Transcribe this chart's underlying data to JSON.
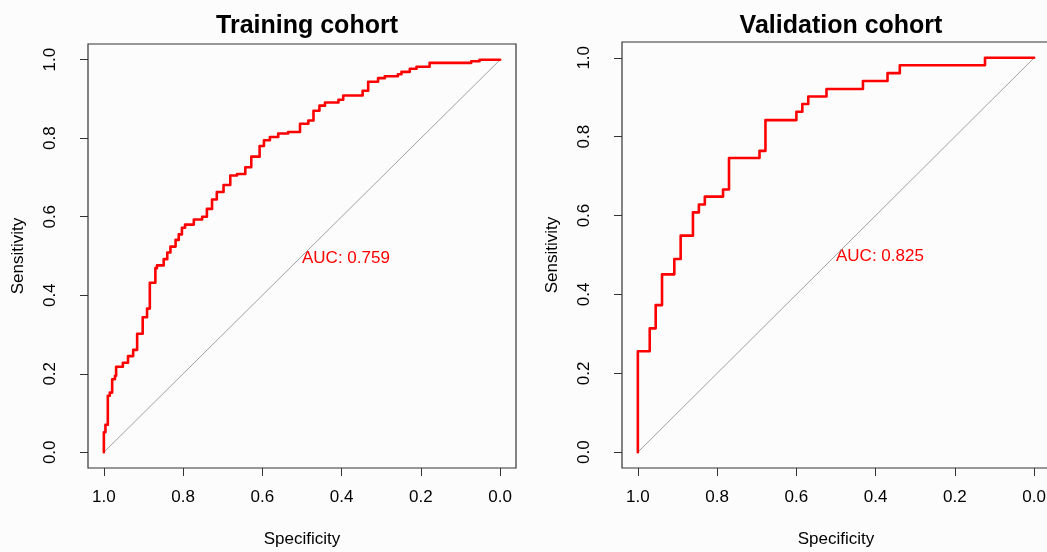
{
  "chart_data": [
    {
      "type": "step",
      "title": "Training cohort",
      "xlabel": "Specificity",
      "ylabel": "Sensitivity",
      "annotations": [
        "AUC: 0.759"
      ],
      "marker": "none",
      "xlim": [
        1.04,
        -0.04
      ],
      "ylim": [
        -0.04,
        1.04
      ],
      "xticks": [
        {
          "value": 1,
          "label": "1.0"
        },
        {
          "value": 0.8,
          "label": "0.8"
        },
        {
          "value": 0.6,
          "label": "0.6"
        },
        {
          "value": 0.4,
          "label": "0.4"
        },
        {
          "value": 0.2,
          "label": "0.2"
        },
        {
          "value": 0,
          "label": "0.0"
        }
      ],
      "yticks": [
        {
          "value": 0,
          "label": "0.0"
        },
        {
          "value": 0.2,
          "label": "0.2"
        },
        {
          "value": 0.4,
          "label": "0.4"
        },
        {
          "value": 0.6,
          "label": "0.6"
        },
        {
          "value": 0.8,
          "label": "0.8"
        },
        {
          "value": 1,
          "label": "1.0"
        }
      ],
      "series": [
        {
          "type": "line",
          "color": "#a0a0a0",
          "x": [
            1,
            0
          ],
          "values": [
            0,
            1
          ]
        },
        {
          "type": "step",
          "color": "#ff0000",
          "x": [
            1,
            1,
            0.996,
            0.99,
            0.985,
            0.979,
            0.972,
            0.969,
            0.952,
            0.939,
            0.926,
            0.916,
            0.902,
            0.891,
            0.884,
            0.87,
            0.866,
            0.849,
            0.84,
            0.832,
            0.819,
            0.811,
            0.803,
            0.795,
            0.773,
            0.752,
            0.74,
            0.727,
            0.715,
            0.698,
            0.681,
            0.664,
            0.643,
            0.628,
            0.607,
            0.596,
            0.581,
            0.56,
            0.535,
            0.505,
            0.484,
            0.471,
            0.456,
            0.442,
            0.408,
            0.396,
            0.347,
            0.333,
            0.308,
            0.291,
            0.258,
            0.249,
            0.228,
            0.211,
            0.178,
            0.073,
            0.052,
            0
          ],
          "values": [
            0,
            0.051,
            0.07,
            0.144,
            0.152,
            0.186,
            0.195,
            0.218,
            0.228,
            0.245,
            0.261,
            0.302,
            0.344,
            0.366,
            0.432,
            0.469,
            0.476,
            0.492,
            0.509,
            0.524,
            0.541,
            0.555,
            0.572,
            0.58,
            0.593,
            0.6,
            0.62,
            0.644,
            0.663,
            0.681,
            0.705,
            0.709,
            0.726,
            0.753,
            0.78,
            0.795,
            0.803,
            0.812,
            0.816,
            0.837,
            0.845,
            0.87,
            0.883,
            0.891,
            0.898,
            0.909,
            0.921,
            0.944,
            0.953,
            0.958,
            0.963,
            0.969,
            0.977,
            0.982,
            0.992,
            0.996,
            1,
            1
          ]
        }
      ]
    },
    {
      "type": "step",
      "title": "Validation cohort",
      "xlabel": "Specificity",
      "ylabel": "Sensitivity",
      "annotations": [
        "AUC: 0.825"
      ],
      "marker": "none",
      "xlim": [
        1.04,
        -0.04
      ],
      "ylim": [
        -0.04,
        1.04
      ],
      "xticks": [
        {
          "value": 1,
          "label": "1.0"
        },
        {
          "value": 0.8,
          "label": "0.8"
        },
        {
          "value": 0.6,
          "label": "0.6"
        },
        {
          "value": 0.4,
          "label": "0.4"
        },
        {
          "value": 0.2,
          "label": "0.2"
        },
        {
          "value": 0,
          "label": "0.0"
        }
      ],
      "yticks": [
        {
          "value": 0,
          "label": "0.0"
        },
        {
          "value": 0.2,
          "label": "0.2"
        },
        {
          "value": 0.4,
          "label": "0.4"
        },
        {
          "value": 0.6,
          "label": "0.6"
        },
        {
          "value": 0.8,
          "label": "0.8"
        },
        {
          "value": 1,
          "label": "1.0"
        }
      ],
      "series": [
        {
          "type": "line",
          "color": "#a0a0a0",
          "x": [
            1,
            0
          ],
          "values": [
            0,
            1
          ]
        },
        {
          "type": "step",
          "color": "#ff0000",
          "x": [
            1,
            1,
            0.97,
            0.955,
            0.939,
            0.908,
            0.892,
            0.861,
            0.846,
            0.831,
            0.785,
            0.77,
            0.693,
            0.678,
            0.6,
            0.585,
            0.57,
            0.524,
            0.432,
            0.37,
            0.339,
            0.124,
            0
          ],
          "values": [
            0,
            0.256,
            0.314,
            0.373,
            0.451,
            0.49,
            0.549,
            0.608,
            0.628,
            0.648,
            0.666,
            0.746,
            0.764,
            0.842,
            0.863,
            0.883,
            0.902,
            0.921,
            0.941,
            0.961,
            0.981,
            1,
            1
          ]
        }
      ]
    }
  ]
}
